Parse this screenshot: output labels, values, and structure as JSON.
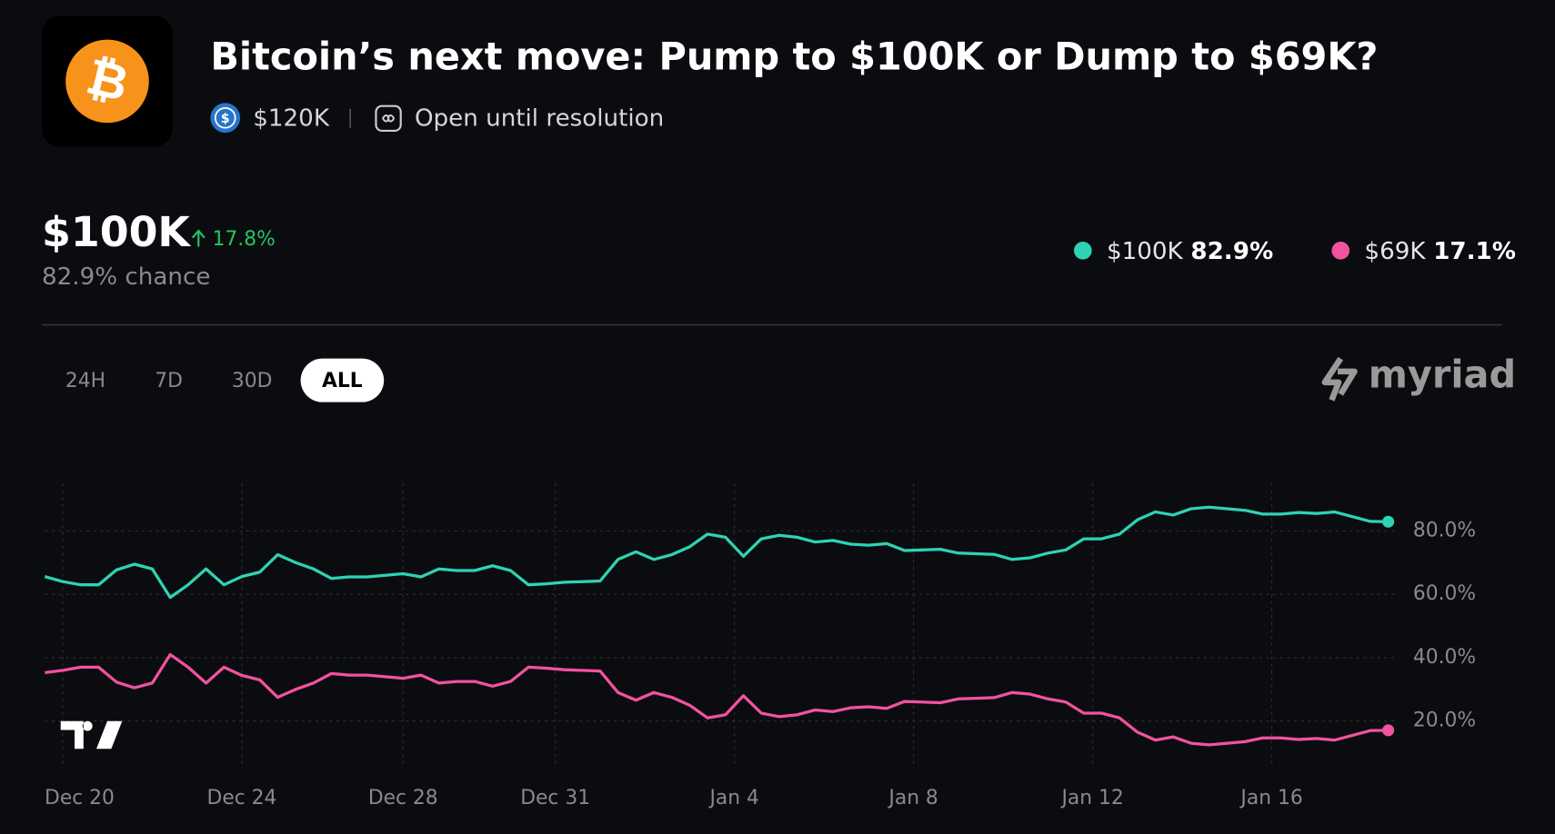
{
  "header": {
    "icon_symbol": "₿",
    "title": "Bitcoin’s next move: Pump to $100K or Dump to $69K?",
    "currency_symbol": "$",
    "volume": "$120K",
    "status": "Open until resolution"
  },
  "outcome": {
    "name": "$100K",
    "change": "17.8%",
    "chance": "82.9% chance"
  },
  "tabs": [
    "24H",
    "7D",
    "30D",
    "ALL"
  ],
  "active_tab": 3,
  "brand": "myriad",
  "chart_data": {
    "type": "line",
    "series": [
      {
        "name": "$100K",
        "color": "#2ed3b4",
        "current": "82.9%",
        "values": [
          65.6,
          64,
          63,
          63,
          67.7,
          69.5,
          68,
          59,
          63,
          68,
          63,
          65.6,
          67,
          72.5,
          70,
          68,
          65,
          65.5,
          65.5,
          66,
          66.5,
          65.5,
          68,
          67.5,
          67.5,
          69,
          67.5,
          63,
          63.3,
          63.8,
          64,
          64.2,
          71,
          73.4,
          71,
          72.5,
          75,
          79,
          78,
          72,
          77.5,
          78.6,
          78,
          76.5,
          77,
          75.8,
          75.5,
          76,
          73.8,
          74,
          74.2,
          73,
          72.8,
          72.6,
          71,
          71.5,
          73,
          74,
          77.5,
          77.5,
          79,
          83.5,
          86,
          85,
          87,
          87.5,
          87,
          86.5,
          85.3,
          85.3,
          85.8,
          85.5,
          86,
          84.5,
          83,
          82.9
        ]
      },
      {
        "name": "$69K",
        "color": "#f2529f",
        "current": "17.1%",
        "values": [
          35.3,
          36,
          37,
          37,
          32.3,
          30.5,
          32,
          41,
          37,
          32,
          37,
          34.4,
          33,
          27.5,
          30,
          32,
          35,
          34.5,
          34.5,
          34,
          33.5,
          34.5,
          32,
          32.5,
          32.5,
          31,
          32.5,
          37,
          36.7,
          36.2,
          36,
          35.8,
          29,
          26.6,
          29,
          27.5,
          25,
          21,
          22,
          28,
          22.5,
          21.4,
          22,
          23.5,
          23,
          24.2,
          24.5,
          24,
          26.2,
          26,
          25.8,
          27,
          27.2,
          27.4,
          29,
          28.5,
          27,
          26,
          22.5,
          22.5,
          21,
          16.5,
          14,
          15,
          13,
          12.5,
          13,
          13.5,
          14.7,
          14.7,
          14.2,
          14.5,
          14,
          15.5,
          17,
          17.1
        ]
      }
    ],
    "xlim": [
      0,
      75
    ],
    "xticks": [
      {
        "value": 1,
        "label": "Dec 20"
      },
      {
        "value": 11,
        "label": "Dec 24"
      },
      {
        "value": 20,
        "label": "Dec 28"
      },
      {
        "value": 28.5,
        "label": "Dec 31"
      },
      {
        "value": 38.5,
        "label": "Jan 4"
      },
      {
        "value": 48.5,
        "label": "Jan 8"
      },
      {
        "value": 58.5,
        "label": "Jan 12"
      },
      {
        "value": 68.5,
        "label": "Jan 16"
      }
    ],
    "ylim": [
      5,
      95
    ],
    "yticks": [
      {
        "value": 20,
        "label": "20.0%"
      },
      {
        "value": 40,
        "label": "40.0%"
      },
      {
        "value": 60,
        "label": "60.0%"
      },
      {
        "value": 80,
        "label": "80.0%"
      }
    ],
    "grid": true
  }
}
